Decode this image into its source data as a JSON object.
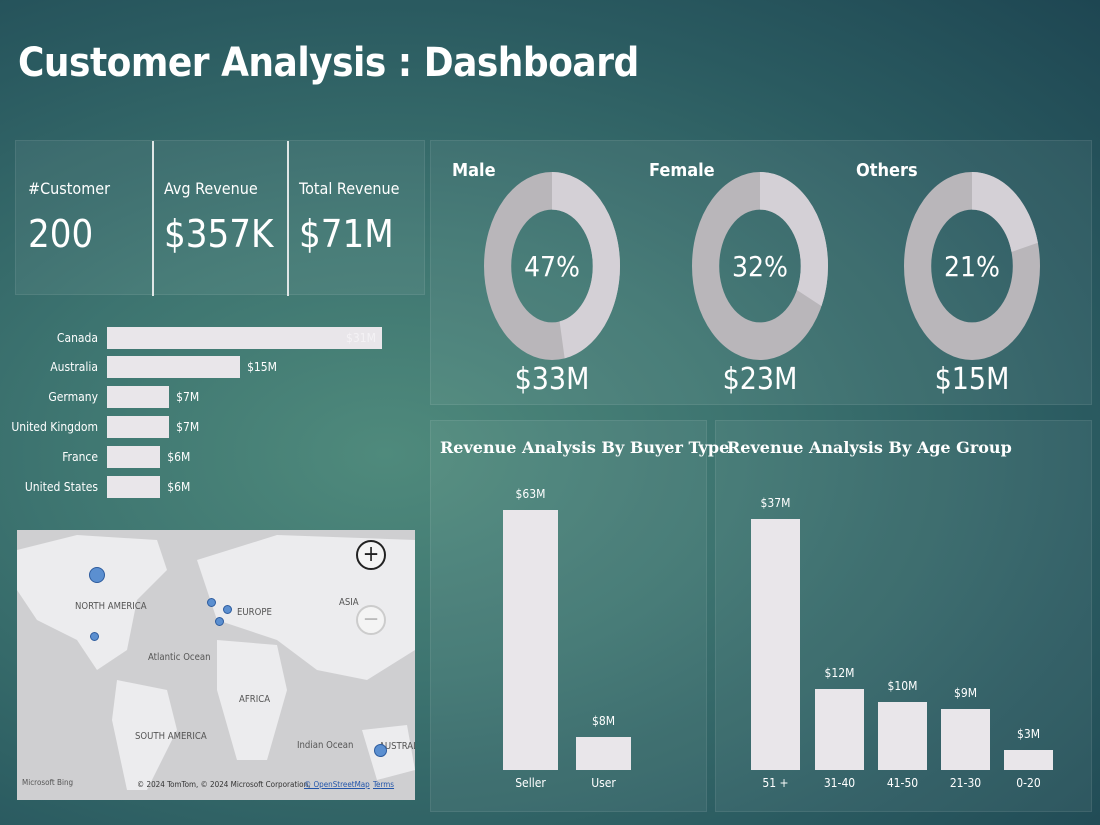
{
  "title": "Customer Analysis : Dashboard",
  "kpis": [
    {
      "label": "#Customer",
      "value": "200"
    },
    {
      "label": "Avg Revenue",
      "value": "$357K"
    },
    {
      "label": "Total Revenue",
      "value": "$71M"
    }
  ],
  "chart_data": [
    {
      "type": "bar",
      "orientation": "horizontal",
      "categories": [
        "Canada",
        "Australia",
        "Germany",
        "United Kingdom",
        "France",
        "United States"
      ],
      "values": [
        31,
        15,
        7,
        7,
        6,
        6
      ],
      "labels": [
        "$31M",
        "$15M",
        "$7M",
        "$7M",
        "$6M",
        "$6M"
      ],
      "unit": "$M"
    },
    {
      "type": "pie",
      "variant": "donut",
      "categories": [
        "Male",
        "Female",
        "Others"
      ],
      "percent": [
        47,
        32,
        21
      ],
      "percent_labels": [
        "47%",
        "32%",
        "21%"
      ],
      "revenue_labels": [
        "$33M",
        "$23M",
        "$15M"
      ]
    },
    {
      "type": "bar",
      "title": "Revenue Analysis By Buyer Type",
      "categories": [
        "Seller",
        "User"
      ],
      "values": [
        63,
        8
      ],
      "labels": [
        "$63M",
        "$8M"
      ],
      "unit": "$M"
    },
    {
      "type": "bar",
      "title": "Revenue Analysis By Age Group",
      "categories": [
        "51 +",
        "31-40",
        "41-50",
        "21-30",
        "0-20"
      ],
      "values": [
        37,
        12,
        10,
        9,
        3
      ],
      "labels": [
        "$37M",
        "$12M",
        "$10M",
        "$9M",
        "$3M"
      ],
      "unit": "$M"
    }
  ],
  "map": {
    "labels": [
      "NORTH AMERICA",
      "EUROPE",
      "ASIA",
      "Atlantic Ocean",
      "AFRICA",
      "SOUTH AMERICA",
      "Indian Ocean",
      "AUSTRAL"
    ],
    "attribution": "© 2024 TomTom, © 2024 Microsoft Corporation,",
    "osm": "© OpenStreetMap",
    "terms": "Terms",
    "brand": "Microsoft Bing",
    "zoom_in": "+",
    "zoom_out": "−"
  },
  "colors": {
    "bar": "#e9e6ea",
    "donut_light": "#d4d0d6",
    "donut_dark": "#b9b6ba",
    "dot": "#5b8fd0"
  }
}
